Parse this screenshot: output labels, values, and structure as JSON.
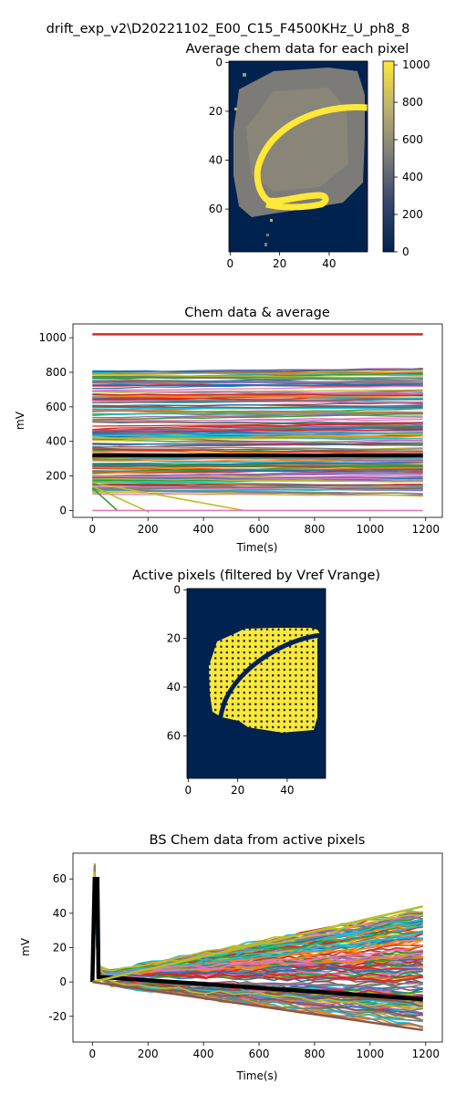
{
  "suptitle": "drift_exp_v2\\D20221102_E00_C15_F4500KHz_U_ph8_8",
  "colors": {
    "navy": "#00224e",
    "gray": "#7c7b78",
    "yellow": "#fee838",
    "trace_avg": "#000000",
    "red": "#d62728"
  },
  "chart_data": [
    {
      "id": "avg_map",
      "type": "heatmap",
      "title": "Average chem data for each pixel",
      "xticks": [
        0,
        20,
        40
      ],
      "yticks": [
        0,
        20,
        40,
        60
      ],
      "xlim": [
        -0.5,
        55.5
      ],
      "ylim": [
        77.5,
        -0.5
      ],
      "colorbar": {
        "ticks": [
          0,
          200,
          400,
          600,
          800,
          1000
        ],
        "range": [
          0,
          1020
        ],
        "colormap": "cividis"
      },
      "background_value": 0,
      "tissue_value": 600,
      "edge_value": 1000
    },
    {
      "id": "chem_traces",
      "type": "line",
      "title": "Chem data & average",
      "xlabel": "Time(s)",
      "ylabel": "mV",
      "xlim": [
        -70,
        1260
      ],
      "ylim": [
        -40,
        1080
      ],
      "xticks": [
        0,
        200,
        400,
        600,
        800,
        1000,
        1200
      ],
      "yticks": [
        0,
        200,
        400,
        600,
        800,
        1000
      ],
      "series": [
        {
          "values_from_to": [
            [
              0,
              1020
            ],
            [
              1190,
              1020
            ]
          ],
          "color": "#d62728"
        },
        {
          "values_from_to": [
            [
              0,
              320
            ],
            [
              1190,
              318
            ]
          ],
          "color": "#000000"
        },
        {
          "values_from_to": [
            [
              0,
              130
            ],
            [
              90,
              0
            ]
          ],
          "color": "#2ca02c"
        },
        {
          "values_from_to": [
            [
              0,
              140
            ],
            [
              205,
              -10
            ]
          ],
          "color": "#bcbd22"
        },
        {
          "values_from_to": [
            [
              0,
              160
            ],
            [
              545,
              0
            ]
          ],
          "color": "#bcbd22"
        },
        {
          "values_from_to": [
            [
              0,
              0
            ],
            [
              1190,
              0
            ]
          ],
          "color": "#e377c2"
        }
      ]
    },
    {
      "id": "active_map",
      "type": "heatmap",
      "title": "Active pixels (filtered by Vref Vrange)",
      "xticks": [
        0,
        20,
        40
      ],
      "yticks": [
        0,
        20,
        40,
        60
      ],
      "xlim": [
        -0.5,
        55.5
      ],
      "ylim": [
        77.5,
        -0.5
      ],
      "values": [
        0,
        1
      ]
    },
    {
      "id": "bs_traces",
      "type": "line",
      "title": "BS Chem data from active pixels",
      "xlabel": "Time(s)",
      "ylabel": "mV",
      "xlim": [
        -70,
        1260
      ],
      "ylim": [
        -35,
        75
      ],
      "xticks": [
        0,
        200,
        400,
        600,
        800,
        1000,
        1200
      ],
      "yticks": [
        -20,
        0,
        20,
        40,
        60
      ],
      "series": [
        {
          "values_from_to": [
            [
              0,
              0
            ],
            [
              8,
              60
            ],
            [
              18,
              60
            ],
            [
              22,
              3
            ],
            [
              1190,
              -10
            ]
          ],
          "color": "#000000"
        },
        {
          "values_from_to": [
            [
              0,
              0
            ],
            [
              1190,
              44
            ]
          ],
          "color": "#bcbd22"
        },
        {
          "values_from_to": [
            [
              0,
              0
            ],
            [
              1190,
              -28
            ]
          ],
          "color": "#8c564b"
        }
      ]
    }
  ]
}
